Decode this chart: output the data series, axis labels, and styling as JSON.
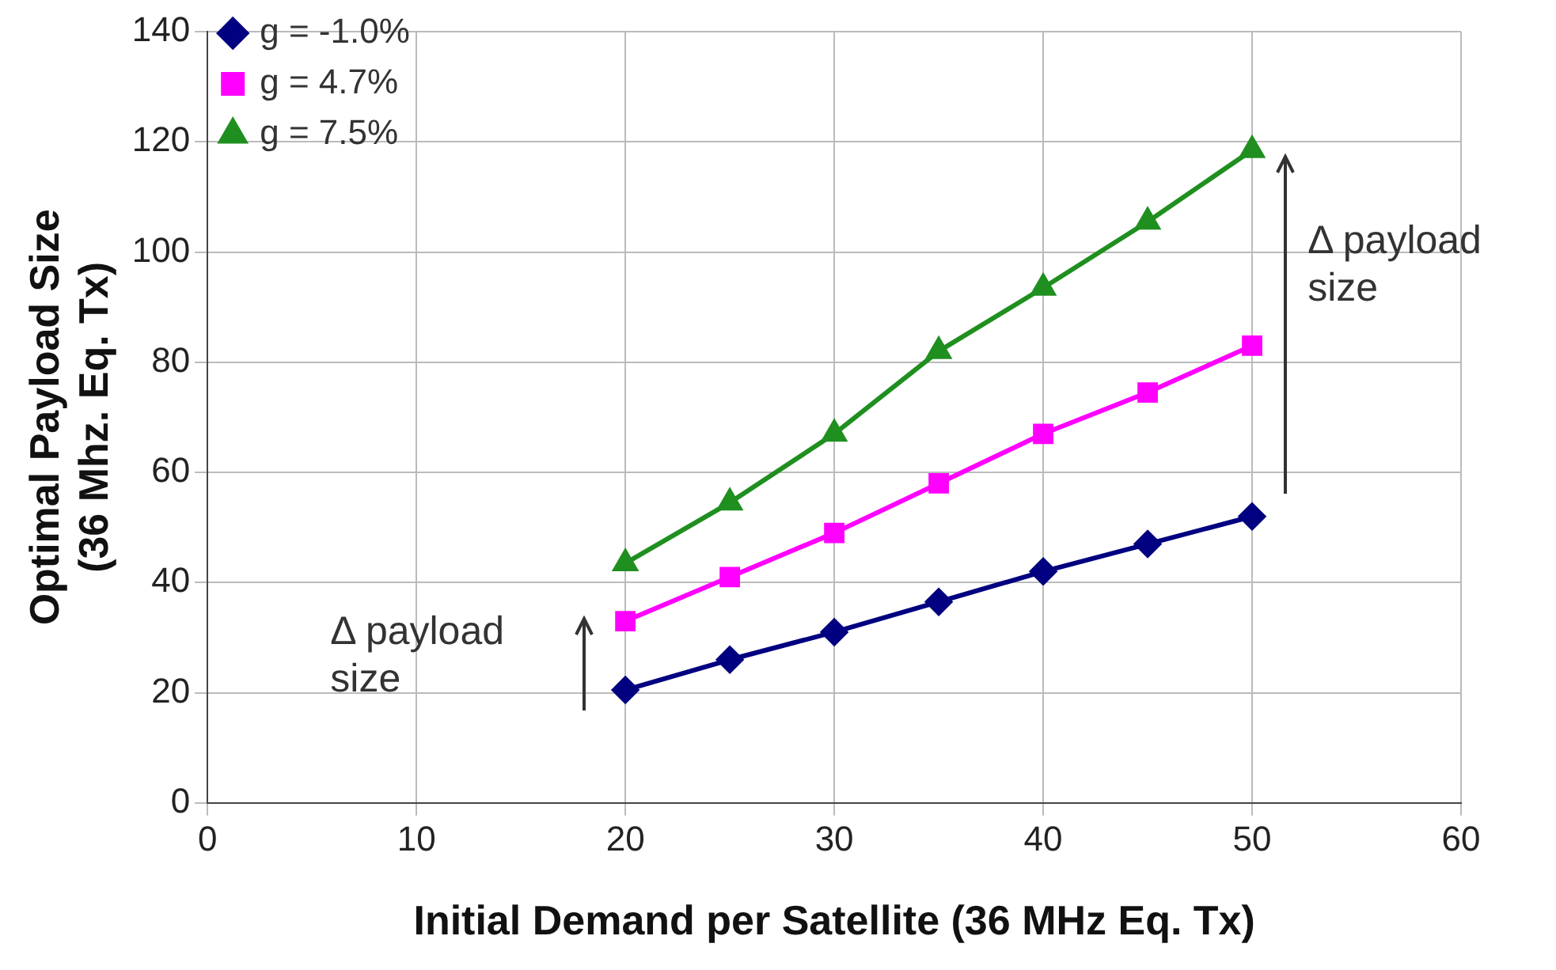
{
  "chart_data": {
    "type": "line",
    "xlabel": "Initial Demand per Satellite (36 MHz Eq. Tx)",
    "ylabel": "Optimal Payload Size\n(36 Mhz. Eq. Tx)",
    "x": [
      20,
      25,
      30,
      35,
      40,
      45,
      50
    ],
    "series": [
      {
        "name": "g = -1.0%",
        "color": "#000080",
        "marker": "diamond",
        "values": [
          20.5,
          26,
          31,
          36.5,
          42,
          47,
          52
        ]
      },
      {
        "name": "g = 4.7%",
        "color": "#ff00ff",
        "marker": "square",
        "values": [
          33,
          41,
          49,
          58,
          67,
          74.5,
          83
        ]
      },
      {
        "name": "g = 7.5%",
        "color": "#1f8f1f",
        "marker": "triangle",
        "values": [
          43.5,
          54.5,
          67,
          82,
          93.5,
          105.5,
          118.5
        ]
      }
    ],
    "xlim": [
      0,
      60
    ],
    "xticks": [
      0,
      10,
      20,
      30,
      40,
      50,
      60
    ],
    "ylim": [
      0,
      140
    ],
    "yticks": [
      0,
      20,
      40,
      60,
      80,
      100,
      120,
      140
    ],
    "grid": true,
    "legend": "top left",
    "line_style": "solid",
    "annotations": [
      "Δ payload size",
      "Δ payload size"
    ]
  }
}
